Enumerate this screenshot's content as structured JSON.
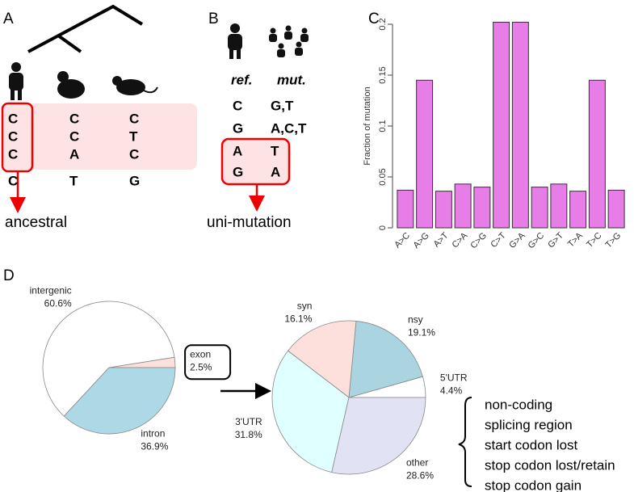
{
  "panel_labels": [
    "A",
    "B",
    "C",
    "D"
  ],
  "panel_a": {
    "columns": [
      [
        "C",
        "C",
        "C",
        "C"
      ],
      [
        "C",
        "C",
        "A",
        "T"
      ],
      [
        "C",
        "T",
        "C",
        "G"
      ]
    ],
    "label": "ancestral"
  },
  "panel_b": {
    "headers": [
      "ref.",
      "mut."
    ],
    "rows": [
      [
        "C",
        "G,T"
      ],
      [
        "G",
        "A,C,T"
      ],
      [
        "A",
        "T"
      ],
      [
        "G",
        "A"
      ]
    ],
    "label": "uni-mutation"
  },
  "chart_data": [
    {
      "type": "bar",
      "ylabel": "Fraction of mutation",
      "categories": [
        "A>C",
        "A>G",
        "A>T",
        "C>A",
        "C>G",
        "C>T",
        "G>A",
        "G>C",
        "G>T",
        "T>A",
        "T>C",
        "T>G"
      ],
      "values": [
        0.037,
        0.145,
        0.036,
        0.043,
        0.04,
        0.202,
        0.202,
        0.04,
        0.043,
        0.036,
        0.145,
        0.037
      ],
      "color": "#e77ee8",
      "ylim": [
        0,
        0.2
      ],
      "yticks": [
        0,
        0.05,
        0.1,
        0.15,
        0.2
      ]
    },
    {
      "type": "pie",
      "categories": [
        "exon",
        "intergenic",
        "intron"
      ],
      "values": [
        2.5,
        60.6,
        36.9
      ],
      "value_labels": [
        "2.5%",
        "60.6%",
        "36.9%"
      ],
      "colors": [
        "#fbe0dc",
        "#ffffff",
        "#add8e6"
      ]
    },
    {
      "type": "pie",
      "categories": [
        "5'UTR",
        "nsy",
        "syn",
        "3'UTR",
        "other"
      ],
      "values": [
        4.4,
        19.1,
        16.1,
        31.8,
        28.6
      ],
      "value_labels": [
        "4.4%",
        "19.1%",
        "16.1%",
        "31.8%",
        "28.6%"
      ],
      "colors": [
        "#ffffff",
        "#a9d4e0",
        "#fde0dc",
        "#e0ffff",
        "#e2e2f5"
      ]
    }
  ],
  "annotation_list": [
    "non-coding",
    "splicing region",
    "start codon lost",
    "stop codon lost/retain",
    "stop codon gain"
  ]
}
